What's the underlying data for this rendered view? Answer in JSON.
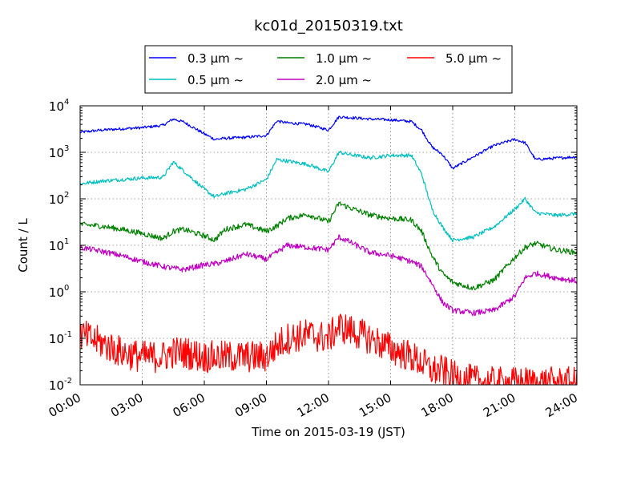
{
  "chart_data": {
    "type": "line",
    "title": "kc01d_20150319.txt",
    "xlabel": "Time on 2015-03-19 (JST)",
    "ylabel": "Count / L",
    "yscale": "log",
    "ylim": [
      0.01,
      10000
    ],
    "xlim": [
      "00:00",
      "24:00"
    ],
    "x_tick_labels": [
      "00:00",
      "03:00",
      "06:00",
      "09:00",
      "12:00",
      "15:00",
      "18:00",
      "21:00",
      "24:00"
    ],
    "y_tick_labels": [
      {
        "base": "10",
        "exp": "-2"
      },
      {
        "base": "10",
        "exp": "-1"
      },
      {
        "base": "10",
        "exp": "0"
      },
      {
        "base": "10",
        "exp": "1"
      },
      {
        "base": "10",
        "exp": "2"
      },
      {
        "base": "10",
        "exp": "3"
      },
      {
        "base": "10",
        "exp": "4"
      }
    ],
    "grid": true,
    "legend_position": "top",
    "x": [
      0,
      1,
      2,
      3,
      4,
      4.5,
      5,
      6,
      6.5,
      7,
      8,
      9,
      9.5,
      10,
      11,
      12,
      12.5,
      13,
      14,
      15,
      16,
      16.5,
      17,
      17.5,
      18,
      19,
      20,
      21,
      21.5,
      22,
      23,
      24
    ],
    "series": [
      {
        "name": "0.3 μm ~",
        "color": "#0000ff",
        "values": [
          2700,
          3000,
          3200,
          3400,
          3800,
          5200,
          4500,
          2500,
          1900,
          2000,
          2100,
          2300,
          4700,
          4300,
          4000,
          3000,
          5800,
          5600,
          5200,
          5000,
          4600,
          3000,
          1300,
          900,
          450,
          800,
          1400,
          1900,
          1600,
          700,
          750,
          800
        ]
      },
      {
        "name": "0.5 μm ~",
        "color": "#00bfbf",
        "values": [
          210,
          240,
          260,
          280,
          290,
          620,
          400,
          160,
          110,
          130,
          160,
          260,
          700,
          650,
          550,
          380,
          1000,
          900,
          760,
          860,
          860,
          340,
          60,
          25,
          13,
          15,
          25,
          60,
          100,
          50,
          44,
          48
        ]
      },
      {
        "name": "1.0 μm ~",
        "color": "#008000",
        "values": [
          28,
          26,
          22,
          18,
          14,
          20,
          22,
          16,
          13,
          22,
          28,
          20,
          26,
          38,
          46,
          32,
          80,
          65,
          45,
          38,
          35,
          20,
          6,
          2.5,
          1.6,
          1.2,
          1.8,
          5.5,
          9,
          11,
          8,
          7
        ]
      },
      {
        "name": "2.0 μm ~",
        "color": "#bf00bf",
        "values": [
          9,
          7.5,
          6,
          4.5,
          3.5,
          3.2,
          3,
          3.8,
          4,
          4.5,
          6.5,
          5,
          7,
          10,
          9,
          8,
          15,
          12,
          7,
          6,
          4.5,
          3.5,
          1.5,
          0.6,
          0.4,
          0.35,
          0.4,
          0.8,
          2,
          2.5,
          2,
          1.7
        ]
      },
      {
        "name": "5.0 μm ~",
        "color": "#ff0000",
        "values": [
          0.12,
          0.08,
          0.05,
          0.04,
          0.04,
          0.05,
          0.05,
          0.04,
          0.04,
          0.04,
          0.04,
          0.04,
          0.07,
          0.1,
          0.12,
          0.1,
          0.18,
          0.15,
          0.1,
          0.06,
          0.04,
          0.03,
          0.02,
          0.02,
          0.015,
          0.012,
          0.011,
          0.011,
          0.011,
          0.011,
          0.011,
          0.011
        ]
      }
    ]
  }
}
